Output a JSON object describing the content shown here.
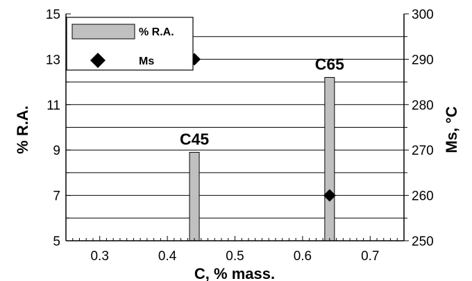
{
  "chart_data": {
    "type": "bar",
    "xlabel": "C, % mass.",
    "ylabel": "% R.A.",
    "y2label": "Ms, °C",
    "xlim": [
      0.25,
      0.75
    ],
    "ylim": [
      5,
      15
    ],
    "y2lim": [
      250,
      300
    ],
    "x_ticks": [
      "0.3",
      "0.4",
      "0.5",
      "0.6",
      "0.7"
    ],
    "y_ticks": [
      "5",
      "7",
      "9",
      "11",
      "13",
      "15"
    ],
    "y2_ticks": [
      "250",
      "260",
      "270",
      "280",
      "290",
      "300"
    ],
    "grid": true,
    "legend_position": "top-left",
    "series": [
      {
        "name": "% R.A.",
        "kind": "bar",
        "axis": "left",
        "color": "#c0c0c0",
        "points": [
          {
            "x": 0.44,
            "y": 8.9,
            "label": "C45"
          },
          {
            "x": 0.64,
            "y": 12.2,
            "label": "C65"
          }
        ]
      },
      {
        "name": "Ms",
        "kind": "scatter",
        "axis": "right",
        "marker": "diamond",
        "color": "#000000",
        "points": [
          {
            "x": 0.44,
            "y": 290
          },
          {
            "x": 0.64,
            "y": 260
          }
        ]
      }
    ]
  }
}
